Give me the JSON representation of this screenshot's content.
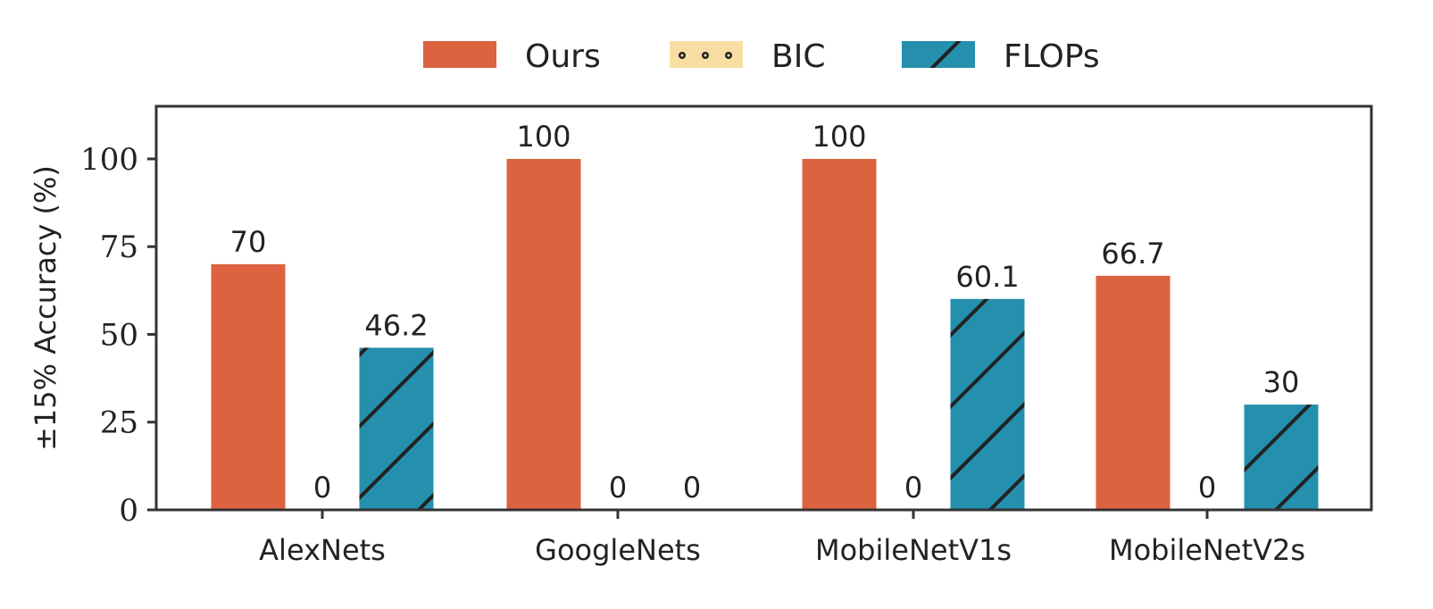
{
  "chart_data": {
    "type": "bar",
    "categories": [
      "AlexNets",
      "GoogleNets",
      "MobileNetV1s",
      "MobileNetV2s"
    ],
    "series": [
      {
        "name": "Ours",
        "values": [
          70,
          100,
          100,
          66.7
        ],
        "labels": [
          "70",
          "100",
          "100",
          "66.7"
        ],
        "color": "#dc6240",
        "pattern": "none"
      },
      {
        "name": "BIC",
        "values": [
          0,
          0,
          0,
          0
        ],
        "labels": [
          "0",
          "0",
          "0",
          "0"
        ],
        "color": "#f9dea4",
        "pattern": "dots"
      },
      {
        "name": "FLOPs",
        "values": [
          46.2,
          0,
          60.1,
          30
        ],
        "labels": [
          "46.2",
          "0",
          "60.1",
          "30"
        ],
        "color": "#2590ae",
        "pattern": "slash"
      }
    ],
    "title": "",
    "xlabel": "",
    "ylabel": "±15% Accuracy (%)",
    "ylim": [
      0,
      115
    ],
    "yticks": [
      0,
      25,
      50,
      75,
      100
    ],
    "grid": false,
    "legend_position": "top-center"
  }
}
